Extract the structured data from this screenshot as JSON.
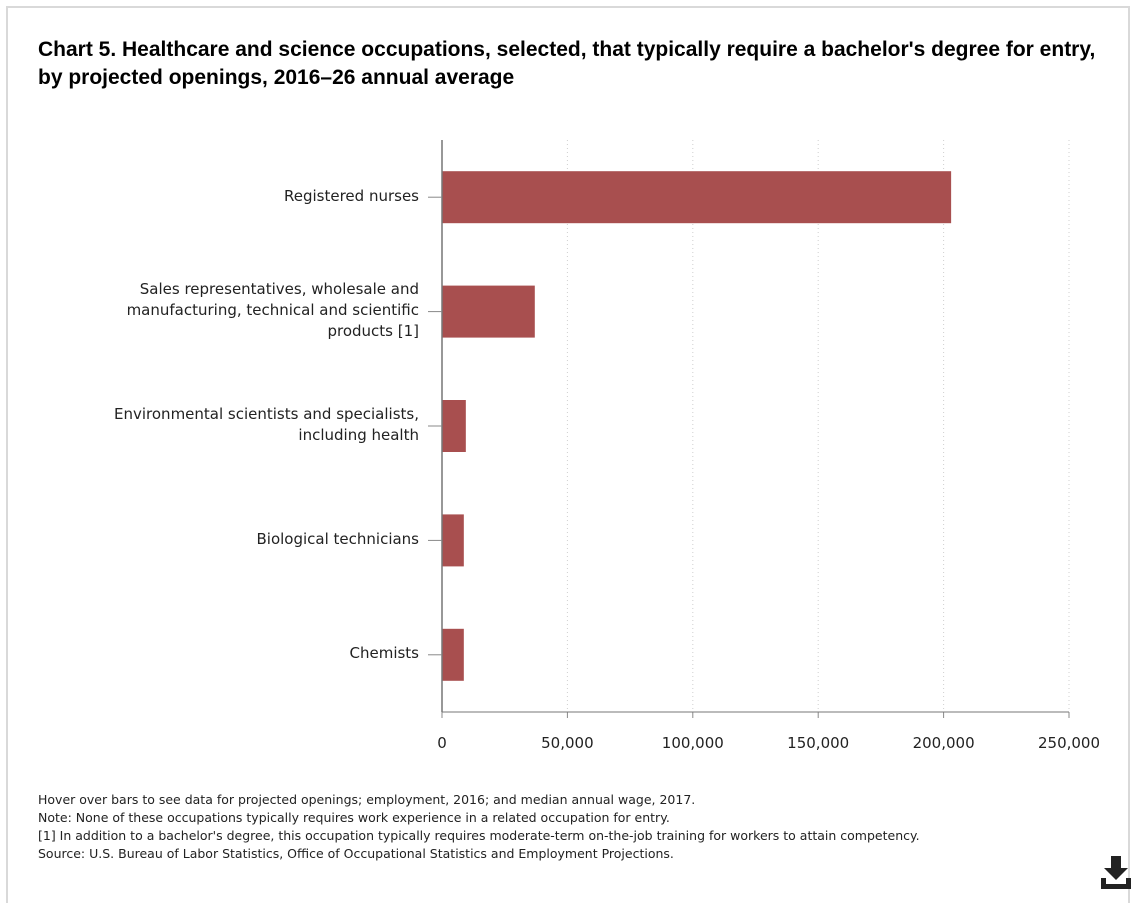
{
  "chart_data": {
    "type": "bar",
    "orientation": "horizontal",
    "title": "Chart 5. Healthcare and science occupations, selected, that typically require a bachelor's degree for entry, by projected openings, 2016–26 annual average",
    "categories": [
      "Registered nurses",
      "Sales representatives, wholesale and manufacturing, technical and scientific products [1]",
      "Environmental scientists and specialists, including health",
      "Biological technicians",
      "Chemists"
    ],
    "category_lines": [
      [
        "Registered nurses"
      ],
      [
        "Sales representatives, wholesale and",
        "manufacturing, technical and scientific",
        "products [1]"
      ],
      [
        "Environmental scientists and specialists,",
        "including health"
      ],
      [
        "Biological technicians"
      ],
      [
        "Chemists"
      ]
    ],
    "values": [
      203000,
      37000,
      9500,
      8700,
      8700
    ],
    "xlim": [
      0,
      250000
    ],
    "xticks": [
      0,
      50000,
      100000,
      150000,
      200000,
      250000
    ],
    "xtick_labels": [
      "0",
      "50,000",
      "100,000",
      "150,000",
      "200,000",
      "250,000"
    ],
    "xlabel": "",
    "ylabel": "",
    "grid": "vertical dotted",
    "bar_color": "#a84f4f"
  },
  "notes": {
    "hover": "Hover over bars to see data for projected openings; employment, 2016; and median annual wage, 2017.",
    "note": "Note: None of these occupations typically requires work experience in a related occupation for entry.",
    "footnote": "[1] In addition to a bachelor's degree, this occupation typically requires moderate-term on-the-job training for workers to attain competency.",
    "source": "Source: U.S. Bureau of Labor Statistics, Office of Occupational Statistics and Employment Projections."
  },
  "download": {
    "icon": "download-icon"
  }
}
